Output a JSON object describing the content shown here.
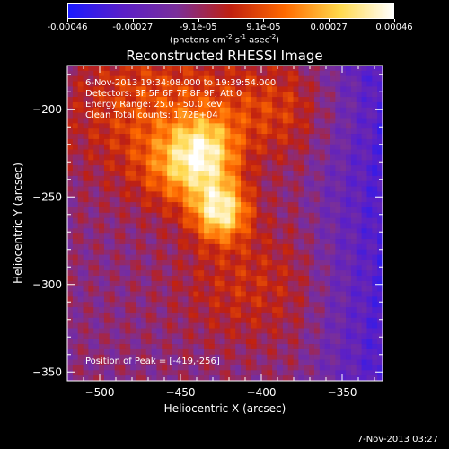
{
  "colorbar": {
    "ticks": [
      "-0.00046",
      "-0.00027",
      "-9.1e-05",
      "9.1e-05",
      "0.00027",
      "0.00046"
    ],
    "units_prefix": "(photons cm",
    "units_exp1": "-2",
    "units_mid1": " s",
    "units_exp2": "-1",
    "units_mid2": " asec",
    "units_exp3": "-2",
    "units_suffix": ")",
    "colors": [
      "#1a1aff",
      "#5a1fc8",
      "#7a2f9a",
      "#c02010",
      "#ff6a00",
      "#ffd84a",
      "#ffffff"
    ]
  },
  "title": "Reconstructed RHESSI Image",
  "info": {
    "time": "6-Nov-2013 19:34:08.000 to 19:39:54.000",
    "detectors": "Detectors: 3F 5F 6F 7F 8F 9F, Att 0",
    "energy": "Energy Range: 25.0 - 50.0 keV",
    "clean": "Clean    Total counts: 1.72E+04",
    "peak": "Position of Peak = [-419,-256]"
  },
  "footer": {
    "date": "7-Nov-2013 03:27"
  },
  "chart_data": {
    "type": "heatmap",
    "title": "Reconstructed RHESSI Image",
    "xlabel": "Heliocentric X (arcsec)",
    "ylabel": "Heliocentric Y (arcsec)",
    "xlim": [
      -520,
      -325
    ],
    "ylim": [
      -355,
      -175
    ],
    "xticks": [
      -500,
      -450,
      -400,
      -350
    ],
    "yticks": [
      -200,
      -250,
      -300,
      -350
    ],
    "zlim": [
      -0.00046,
      0.00046
    ],
    "peak": {
      "x": -419,
      "y": -256
    },
    "sources": [
      {
        "x": -425,
        "y": -258,
        "sx": 12,
        "sy": 12,
        "amp": 0.00046
      },
      {
        "x": -435,
        "y": -225,
        "sx": 14,
        "sy": 14,
        "amp": 0.00032
      },
      {
        "x": -450,
        "y": -235,
        "sx": 18,
        "sy": 16,
        "amp": 0.00022
      },
      {
        "x": -470,
        "y": -200,
        "sx": 35,
        "sy": 30,
        "amp": 0.0002
      },
      {
        "x": -395,
        "y": -200,
        "sx": 30,
        "sy": 20,
        "amp": 0.00016
      },
      {
        "x": -410,
        "y": -300,
        "sx": 30,
        "sy": 25,
        "amp": 0.00014
      }
    ],
    "background_level": -0.00012,
    "colormap": [
      "#1a1aff",
      "#5a1fc8",
      "#7a2f9a",
      "#c02010",
      "#ff6a00",
      "#ffd84a",
      "#ffffff"
    ]
  }
}
